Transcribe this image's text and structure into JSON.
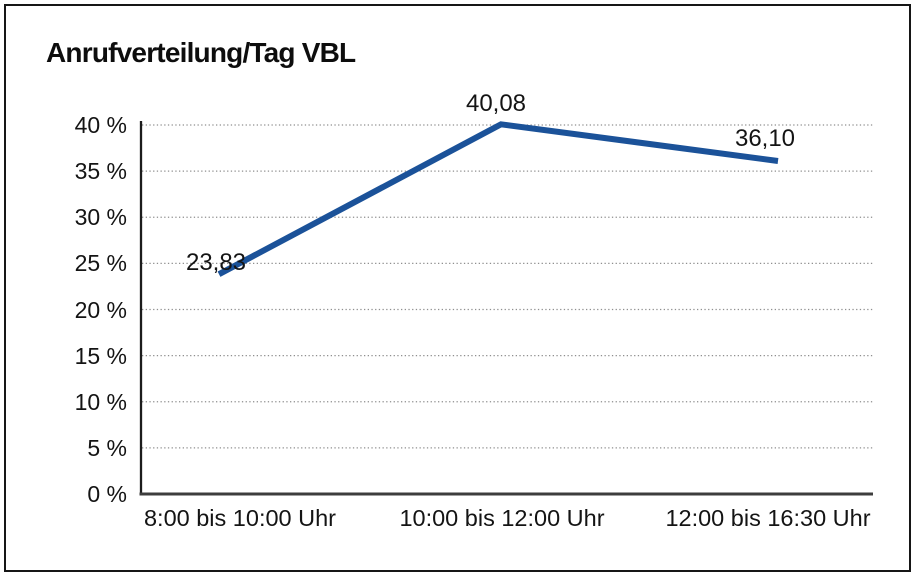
{
  "chart": {
    "title": "Anrufverteilung/Tag VBL"
  },
  "chart_data": {
    "type": "line",
    "title": "Anrufverteilung/Tag VBL",
    "categories": [
      "8:00 bis 10:00 Uhr",
      "10:00 bis 12:00 Uhr",
      "12:00 bis 16:30 Uhr"
    ],
    "series": [
      {
        "name": "Anrufverteilung",
        "values": [
          23.83,
          40.08,
          36.1
        ],
        "value_labels": [
          "23,83",
          "40,08",
          "36,10"
        ]
      }
    ],
    "xlabel": "",
    "ylabel": "",
    "ylim": [
      0,
      40
    ],
    "ytick_step": 5,
    "ytick_labels": [
      "0 %",
      "5 %",
      "10 %",
      "15 %",
      "20 %",
      "25 %",
      "30 %",
      "35 %",
      "40 %"
    ],
    "grid": "horizontal-dotted",
    "legend_position": "none",
    "colors": {
      "line": "#1B5299",
      "gridline": "#8f8f8f",
      "axis": "#3d3d3d",
      "y_axis": "#1c1c1c",
      "text": "#141414",
      "frame_border": "#161616",
      "background": "#ffffff"
    }
  }
}
